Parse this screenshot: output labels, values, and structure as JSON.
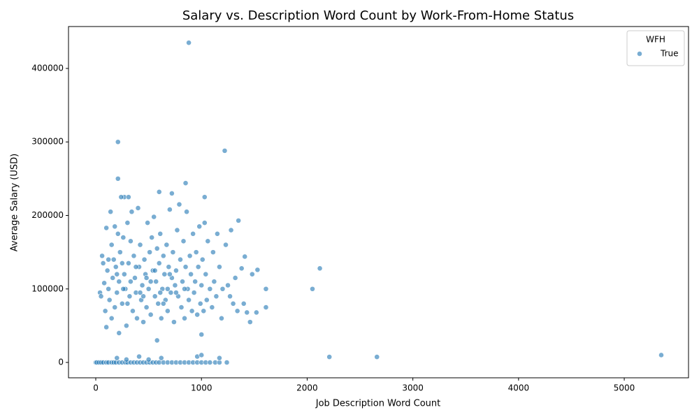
{
  "chart_data": {
    "type": "scatter",
    "title": "Salary vs. Description Word Count by Work-From-Home Status",
    "x_label": "Job Description Word Count",
    "y_label": "Average Salary (USD)",
    "legend_title": "WFH",
    "legend_position": "upper right",
    "xlim": [
      -258,
      5608
    ],
    "ylim": [
      -20900,
      457000
    ],
    "xticks": [
      0,
      1000,
      2000,
      3000,
      4000,
      5000
    ],
    "yticks": [
      0,
      100000,
      200000,
      300000,
      400000
    ],
    "series": [
      {
        "name": "True",
        "color": "#1f77b4",
        "x": [
          0,
          10,
          30,
          50,
          70,
          100,
          120,
          150,
          170,
          190,
          220,
          250,
          280,
          300,
          330,
          360,
          390,
          420,
          450,
          480,
          510,
          540,
          570,
          600,
          640,
          680,
          720,
          760,
          800,
          840,
          880,
          920,
          960,
          1000,
          1040,
          1080,
          1130,
          1170,
          1240,
          200,
          410,
          620,
          960,
          1000,
          1170,
          290,
          500,
          880,
          210,
          1220,
          210,
          850,
          600,
          720,
          1030,
          270,
          310,
          5350,
          2210,
          2660,
          2120,
          2050,
          1610,
          1610,
          1530,
          1460,
          580,
          1000,
          1350,
          40,
          50,
          60,
          70,
          80,
          90,
          100,
          100,
          110,
          120,
          130,
          140,
          150,
          150,
          160,
          170,
          180,
          180,
          190,
          200,
          210,
          220,
          220,
          230,
          240,
          250,
          260,
          270,
          280,
          290,
          300,
          310,
          320,
          330,
          340,
          350,
          360,
          370,
          380,
          390,
          400,
          410,
          420,
          430,
          440,
          450,
          460,
          470,
          480,
          490,
          500,
          510,
          520,
          530,
          540,
          550,
          560,
          570,
          580,
          590,
          600,
          610,
          620,
          630,
          640,
          650,
          660,
          670,
          680,
          690,
          700,
          710,
          720,
          730,
          740,
          750,
          760,
          770,
          780,
          790,
          800,
          810,
          820,
          830,
          840,
          850,
          860,
          870,
          880,
          890,
          900,
          910,
          920,
          930,
          940,
          950,
          960,
          970,
          980,
          990,
          1000,
          1010,
          1020,
          1030,
          1040,
          1050,
          1060,
          1080,
          1100,
          1110,
          1120,
          1140,
          1150,
          1170,
          1190,
          1200,
          1230,
          1250,
          1270,
          1280,
          1300,
          1320,
          1340,
          1380,
          1400,
          1410,
          1430,
          1480,
          1520,
          120,
          200,
          260,
          330,
          380,
          450,
          520,
          610,
          680,
          760,
          840,
          250,
          300,
          420,
          480,
          560,
          640,
          700
        ],
        "values": [
          0,
          0,
          0,
          0,
          0,
          0,
          0,
          0,
          0,
          0,
          0,
          0,
          0,
          0,
          0,
          0,
          0,
          0,
          0,
          0,
          0,
          0,
          0,
          0,
          0,
          0,
          0,
          0,
          0,
          0,
          0,
          0,
          0,
          0,
          0,
          0,
          0,
          0,
          0,
          6000,
          8000,
          6000,
          8000,
          10000,
          6000,
          4000,
          4000,
          435000,
          300000,
          288000,
          250000,
          244000,
          232000,
          230000,
          225000,
          225000,
          225000,
          10000,
          7500,
          7500,
          128000,
          100000,
          100000,
          75000,
          126000,
          55000,
          30000,
          38000,
          193000,
          95000,
          90000,
          145000,
          135000,
          108000,
          70000,
          183000,
          48000,
          125000,
          100000,
          85000,
          205000,
          160000,
          60000,
          115000,
          140000,
          185000,
          75000,
          130000,
          95000,
          175000,
          110000,
          40000,
          150000,
          225000,
          80000,
          170000,
          120000,
          100000,
          50000,
          190000,
          135000,
          90000,
          165000,
          205000,
          70000,
          145000,
          115000,
          95000,
          60000,
          210000,
          130000,
          160000,
          85000,
          105000,
          55000,
          140000,
          120000,
          75000,
          190000,
          100000,
          150000,
          65000,
          170000,
          125000,
          198000,
          90000,
          110000,
          155000,
          80000,
          135000,
          175000,
          60000,
          100000,
          145000,
          120000,
          85000,
          160000,
          70000,
          130000,
          208000,
          95000,
          115000,
          150000,
          55000,
          105000,
          125000,
          180000,
          90000,
          215000,
          140000,
          75000,
          110000,
          165000,
          60000,
          130000,
          205000,
          100000,
          85000,
          145000,
          120000,
          70000,
          175000,
          95000,
          110000,
          150000,
          65000,
          130000,
          185000,
          80000,
          105000,
          140000,
          70000,
          190000,
          120000,
          85000,
          165000,
          100000,
          75000,
          150000,
          110000,
          90000,
          175000,
          130000,
          60000,
          100000,
          160000,
          105000,
          90000,
          180000,
          80000,
          115000,
          70000,
          128000,
          80000,
          144000,
          68000,
          120000,
          68000,
          140000,
          120000,
          100000,
          110000,
          130000,
          90000,
          110000,
          95000,
          100000,
          95000,
          100000,
          135000,
          80000,
          95000,
          115000,
          125000,
          80000,
          120000
        ]
      }
    ]
  }
}
